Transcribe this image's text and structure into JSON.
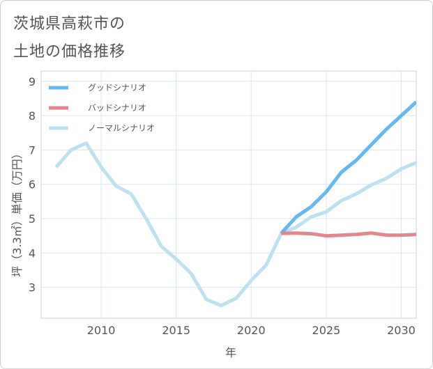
{
  "title": {
    "line1": "茨城県高萩市の",
    "line2": "土地の価格推移"
  },
  "chart_data": {
    "type": "line",
    "xlabel": "年",
    "ylabel": "坪（3.3㎡）単価（万円）",
    "xlim": [
      2006.0,
      2031.0
    ],
    "ylim": [
      2.1,
      9.3
    ],
    "xticks": [
      2010,
      2015,
      2020,
      2025,
      2030
    ],
    "yticks": [
      3,
      4,
      5,
      6,
      7,
      8,
      9
    ],
    "grid": true,
    "legend_position": "top-left",
    "series": [
      {
        "name": "ノーマルシナリオ",
        "color": "#bfe1ee",
        "x": [
          2007,
          2008,
          2009,
          2010,
          2011,
          2012,
          2013,
          2014,
          2015,
          2016,
          2017,
          2018,
          2019,
          2020,
          2021,
          2022,
          2023,
          2024,
          2025,
          2026,
          2027,
          2028,
          2029,
          2030,
          2031
        ],
        "values": [
          6.5,
          7.0,
          7.2,
          6.5,
          5.95,
          5.72,
          5.0,
          4.2,
          3.82,
          3.4,
          2.65,
          2.47,
          2.68,
          3.2,
          3.65,
          4.57,
          4.75,
          5.05,
          5.2,
          5.52,
          5.72,
          5.98,
          6.17,
          6.45,
          6.63
        ]
      },
      {
        "name": "グッドシナリオ",
        "color": "#65b9ee",
        "x": [
          2022,
          2023,
          2024,
          2025,
          2026,
          2027,
          2028,
          2029,
          2030,
          2031
        ],
        "values": [
          4.57,
          5.05,
          5.35,
          5.78,
          6.35,
          6.7,
          7.15,
          7.6,
          8.0,
          8.4
        ]
      },
      {
        "name": "バッドシナリオ",
        "color": "#e0878f",
        "x": [
          2022,
          2023,
          2024,
          2025,
          2026,
          2027,
          2028,
          2029,
          2030,
          2031
        ],
        "values": [
          4.57,
          4.58,
          4.56,
          4.5,
          4.52,
          4.54,
          4.58,
          4.52,
          4.52,
          4.54
        ]
      }
    ],
    "legend": [
      {
        "name": "グッドシナリオ",
        "color": "#65b9ee"
      },
      {
        "name": "バッドシナリオ",
        "color": "#e0878f"
      },
      {
        "name": "ノーマルシナリオ",
        "color": "#bfe1ee"
      }
    ]
  }
}
